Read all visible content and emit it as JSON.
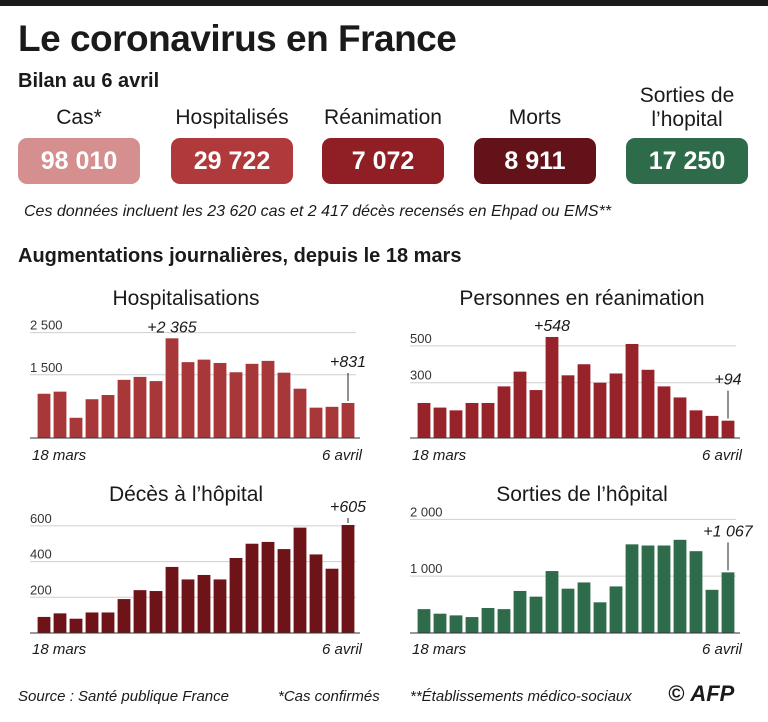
{
  "title": "Le coronavirus en France",
  "subtitle": "Bilan au 6 avril",
  "stats": [
    {
      "label": "Cas*",
      "value": "98 010",
      "color": "#d48f8e"
    },
    {
      "label": "Hospitalisés",
      "value": "29 722",
      "color": "#b0393c"
    },
    {
      "label": "Réanimation",
      "value": "7 072",
      "color": "#8f1f24"
    },
    {
      "label": "Morts",
      "value": "8 911",
      "color": "#621218"
    },
    {
      "label": "Sorties de l’hopital",
      "value": "17 250",
      "color": "#2e6b4a"
    }
  ],
  "note": "Ces données incluent les 23 620 cas et 2 417 décès recensés en Ehpad ou EMS**",
  "section_title": "Augmentations journalières, depuis le 18 mars",
  "chart_data": [
    {
      "type": "bar",
      "title": "Hospitalisations",
      "color": "#a8373a",
      "x_start": "18 mars",
      "x_end": "6 avril",
      "y_ticks": [
        "2 500",
        "1 500"
      ],
      "y_tick_values": [
        2500,
        1500
      ],
      "ylim": [
        0,
        2800
      ],
      "values": [
        1050,
        1100,
        480,
        920,
        1020,
        1380,
        1450,
        1350,
        2365,
        1800,
        1860,
        1780,
        1560,
        1760,
        1830,
        1550,
        1170,
        720,
        740,
        831
      ],
      "annotations": [
        {
          "index": 8,
          "text": "+2 365"
        },
        {
          "index": 19,
          "text": "+831"
        }
      ]
    },
    {
      "type": "bar",
      "title": "Personnes en réanimation",
      "color": "#96232a",
      "x_start": "18 mars",
      "x_end": "6 avril",
      "y_ticks": [
        "500",
        "300"
      ],
      "y_tick_values": [
        500,
        300
      ],
      "ylim": [
        0,
        640
      ],
      "values": [
        190,
        165,
        150,
        190,
        190,
        280,
        360,
        260,
        548,
        340,
        400,
        300,
        350,
        510,
        370,
        280,
        220,
        150,
        120,
        94
      ],
      "annotations": [
        {
          "index": 8,
          "text": "+548"
        },
        {
          "index": 19,
          "text": "+94"
        }
      ]
    },
    {
      "type": "bar",
      "title": "Décès à l’hôpital",
      "color": "#6e1419",
      "x_start": "18 mars",
      "x_end": "6 avril",
      "y_ticks": [
        "600",
        "400",
        "200"
      ],
      "y_tick_values": [
        600,
        400,
        200
      ],
      "ylim": [
        0,
        700
      ],
      "values": [
        90,
        110,
        80,
        115,
        115,
        190,
        240,
        235,
        370,
        300,
        325,
        300,
        420,
        500,
        510,
        470,
        590,
        440,
        360,
        605
      ],
      "annotations": [
        {
          "index": 19,
          "text": "+605"
        }
      ]
    },
    {
      "type": "bar",
      "title": "Sorties de l’hôpital",
      "color": "#2e6b4a",
      "x_start": "18 mars",
      "x_end": "6 avril",
      "y_ticks": [
        "2 000",
        "1 000"
      ],
      "y_tick_values": [
        2000,
        1000
      ],
      "ylim": [
        0,
        2200
      ],
      "values": [
        420,
        340,
        310,
        280,
        440,
        420,
        740,
        640,
        1090,
        780,
        890,
        540,
        820,
        1560,
        1540,
        1540,
        1640,
        1440,
        760,
        1067
      ],
      "annotations": [
        {
          "index": 19,
          "text": "+1 067"
        }
      ]
    }
  ],
  "footer": {
    "source": "Source : Santé publique France",
    "note1": "*Cas confirmés",
    "note2": "**Établissements médico-sociaux",
    "credit": "AFP",
    "copyright": "©"
  }
}
